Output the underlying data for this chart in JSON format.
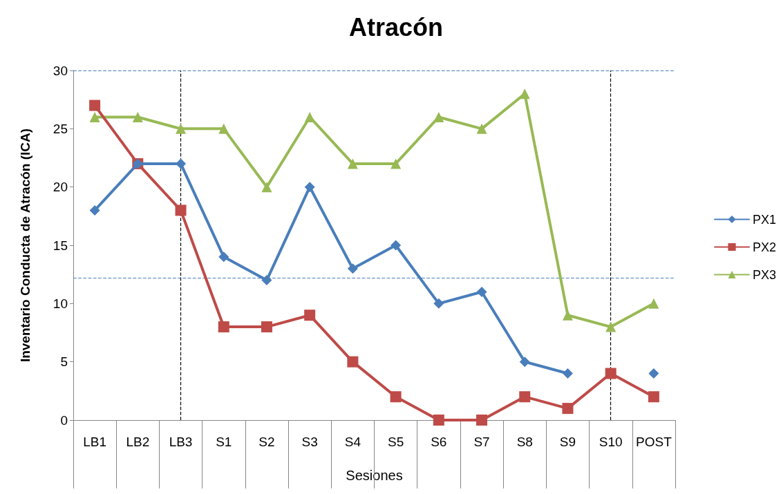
{
  "chart_data": {
    "type": "line",
    "title": "Atracón",
    "xlabel": "Sesiones",
    "ylabel": "Inventario Conducta de Atracón (ICA)",
    "categories": [
      "LB1",
      "LB2",
      "LB3",
      "S1",
      "S2",
      "S3",
      "S4",
      "S5",
      "S6",
      "S7",
      "S8",
      "S9",
      "S10",
      "POST"
    ],
    "series": [
      {
        "name": "PX1",
        "color": "#4a7ebb",
        "marker": "diamond",
        "values": [
          18,
          22,
          22,
          14,
          12,
          20,
          13,
          15,
          10,
          11,
          5,
          4,
          null,
          4
        ]
      },
      {
        "name": "PX2",
        "color": "#be4b48",
        "marker": "square",
        "values": [
          27,
          22,
          18,
          8,
          8,
          9,
          5,
          2,
          0,
          0,
          2,
          1,
          4,
          2
        ]
      },
      {
        "name": "PX3",
        "color": "#98b954",
        "marker": "triangle",
        "values": [
          26,
          26,
          25,
          25,
          20,
          26,
          22,
          22,
          26,
          25,
          28,
          9,
          8,
          10
        ]
      }
    ],
    "ylim": [
      0,
      30
    ],
    "yticks": [
      0,
      5,
      10,
      15,
      20,
      25,
      30
    ],
    "grid": false,
    "legend": "right",
    "line_style": "solid",
    "ref_lines": [
      {
        "axis": "y",
        "value": 30,
        "color": "#4a7ebb",
        "line_style": "dashed"
      },
      {
        "axis": "y",
        "value": 12.2,
        "color": "#4a7ebb",
        "line_style": "dashed"
      },
      {
        "axis": "x",
        "value": "LB3",
        "color": "#000000",
        "line_style": "dashed"
      },
      {
        "axis": "x",
        "value": "S10",
        "color": "#000000",
        "line_style": "dashed"
      }
    ]
  }
}
